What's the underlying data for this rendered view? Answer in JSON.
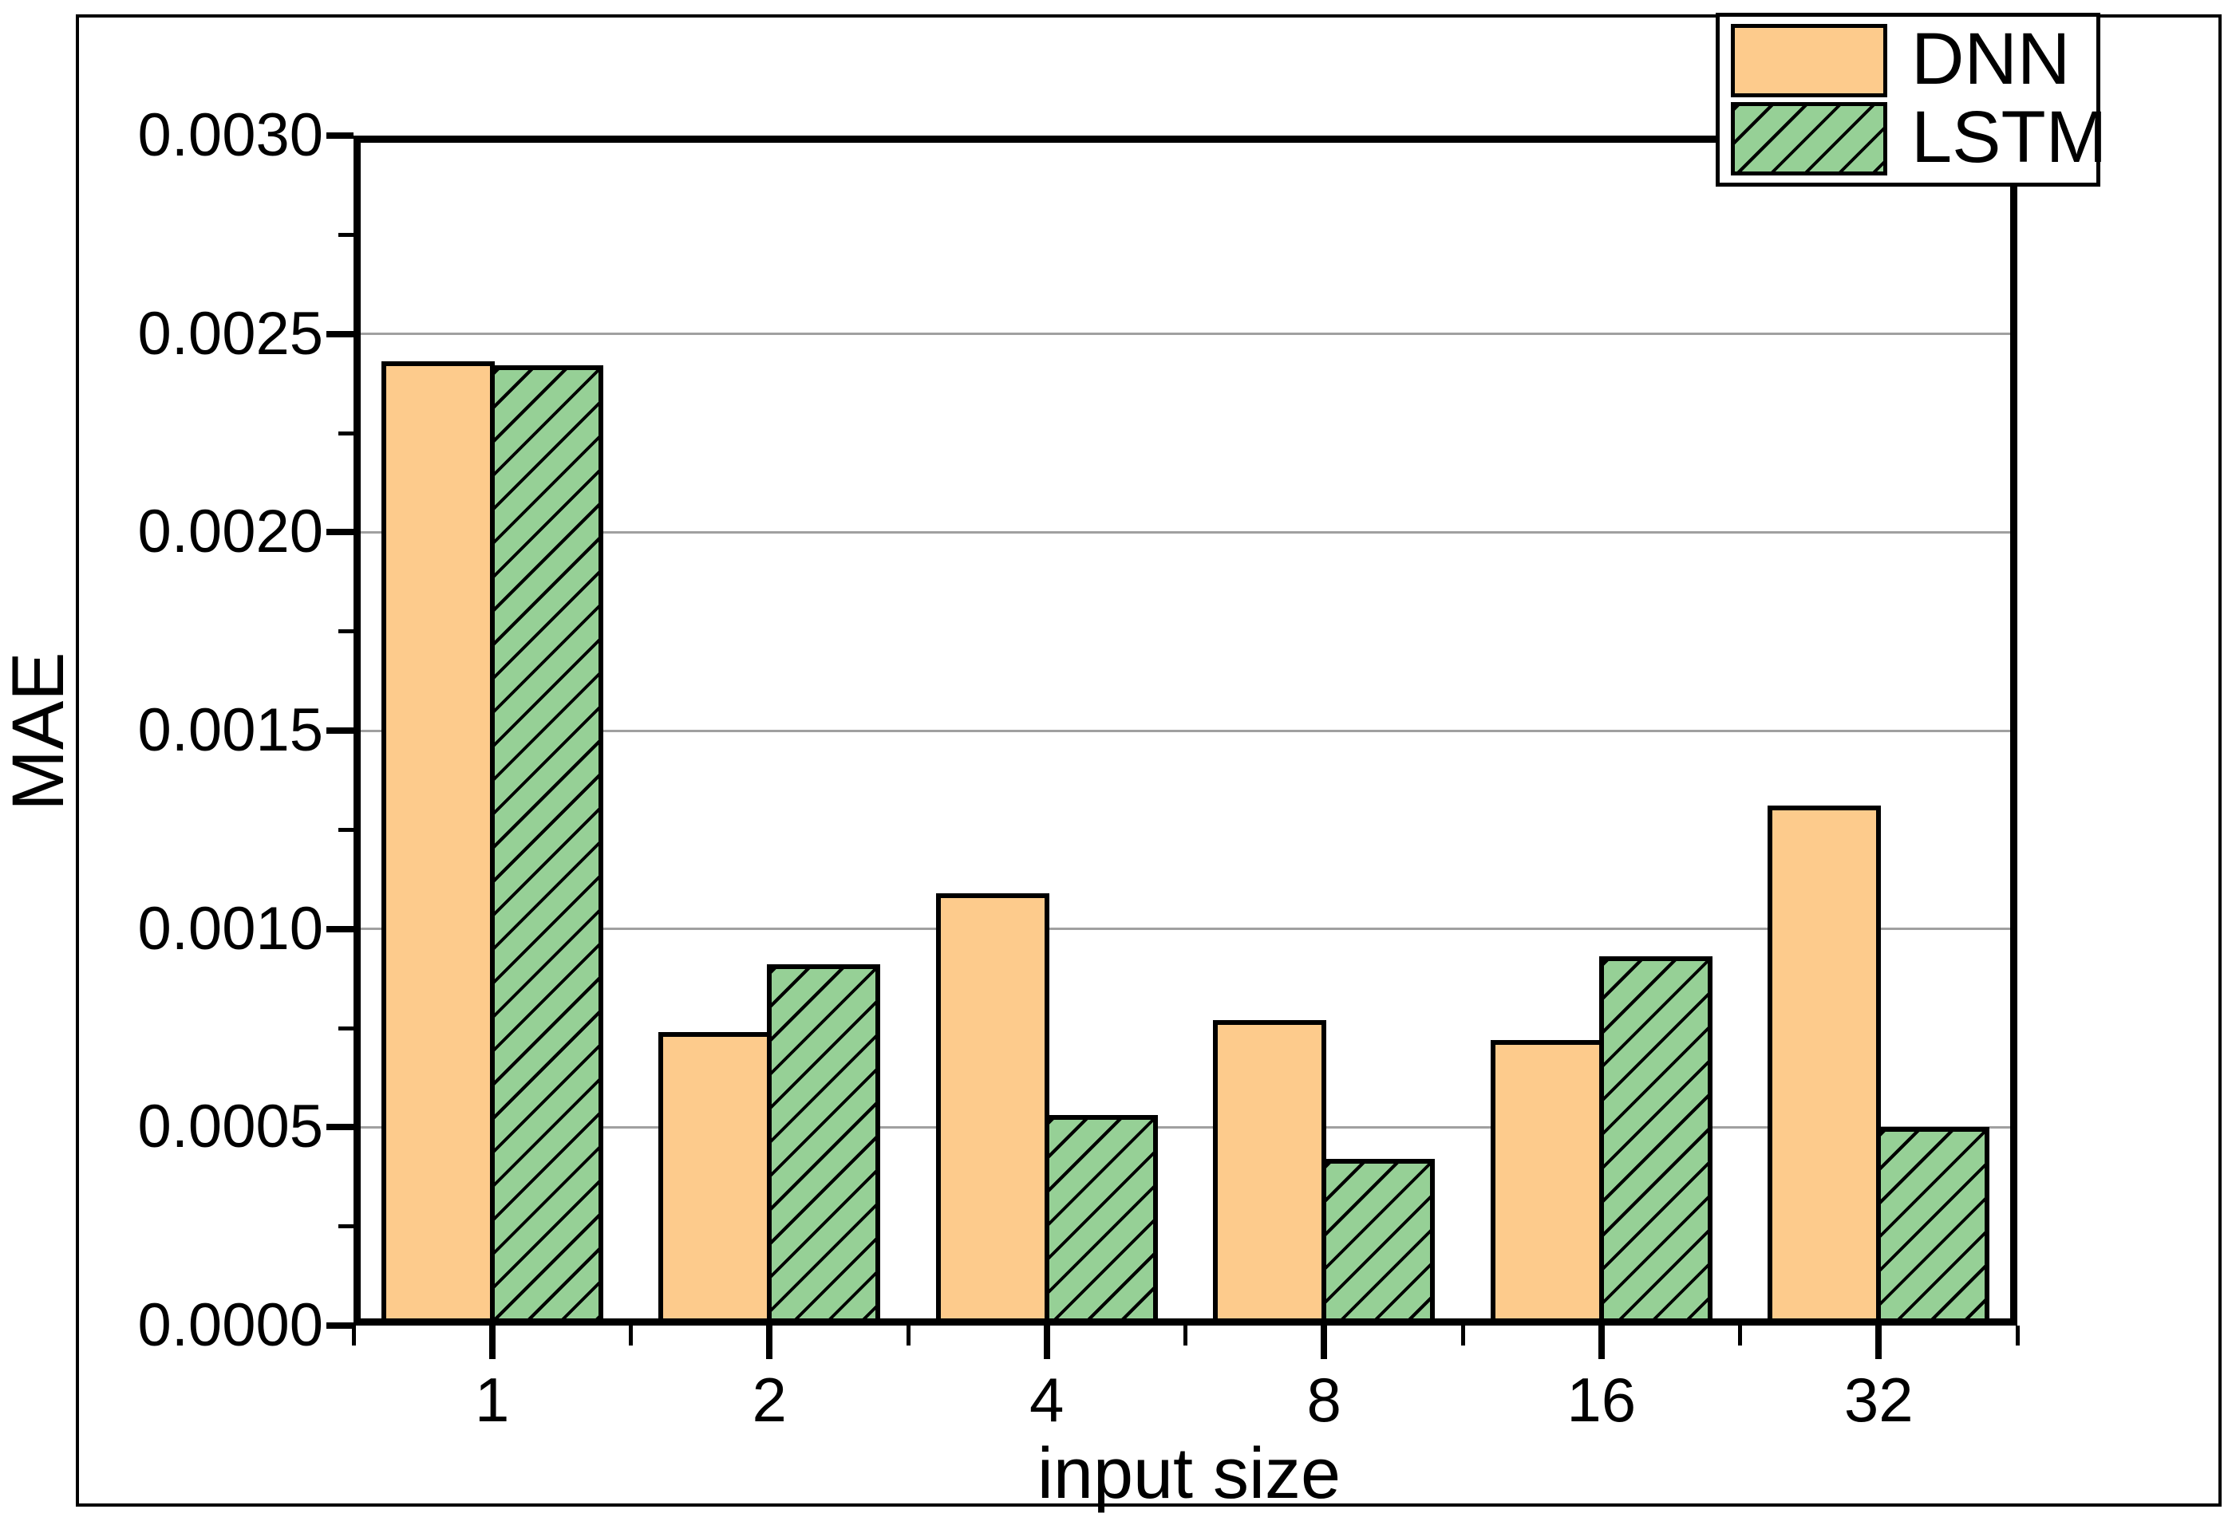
{
  "chart_data": {
    "type": "bar",
    "title": "",
    "xlabel": "input size",
    "ylabel": "MAE",
    "categories": [
      "1",
      "2",
      "4",
      "8",
      "16",
      "32"
    ],
    "series": [
      {
        "name": "DNN",
        "fill": "#FDCB8C",
        "hatch": false,
        "values": [
          0.00243,
          0.00074,
          0.00109,
          0.00077,
          0.00072,
          0.00131
        ]
      },
      {
        "name": "LSTM",
        "fill": "#96D096",
        "hatch": true,
        "values": [
          0.00242,
          0.00091,
          0.00053,
          0.00042,
          0.00093,
          0.0005
        ]
      }
    ],
    "ylim": [
      0.0,
      0.003
    ],
    "ytick_step": 0.0005,
    "yminor_step": 0.00025,
    "ytick_labels": [
      "0.0000",
      "0.0005",
      "0.0010",
      "0.0015",
      "0.0020",
      "0.0025",
      "0.0030"
    ],
    "grid": "horizontal-major",
    "gridline_color": "#A0A0A0",
    "frame_color": "#000000",
    "hatch_color": "#000000",
    "background_color": "#FFFFFF",
    "legend": {
      "position": "top-right",
      "entries": [
        "DNN",
        "LSTM"
      ]
    }
  }
}
